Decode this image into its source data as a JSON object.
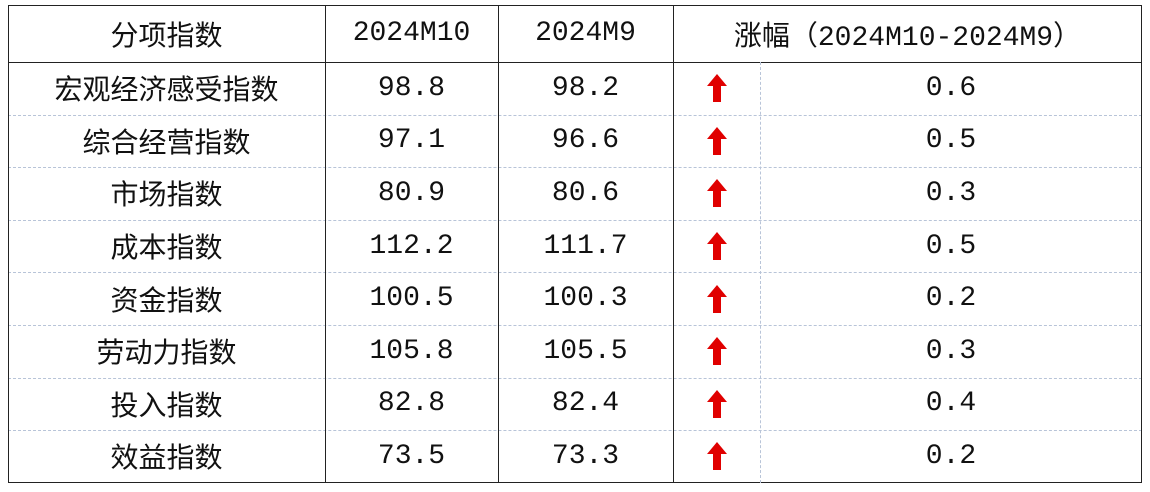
{
  "table": {
    "header": [
      "分项指数",
      "2024M10",
      "2024M9",
      "涨幅（2024M10-2024M9）"
    ],
    "rows": [
      [
        "宏观经济感受指数",
        98.8,
        98.2,
        0.6
      ],
      [
        "综合经营指数",
        97.1,
        96.6,
        0.5
      ],
      [
        "市场指数",
        80.9,
        80.6,
        0.3
      ],
      [
        "成本指数",
        112.2,
        111.7,
        0.5
      ],
      [
        "资金指数",
        100.5,
        100.3,
        0.2
      ],
      [
        "劳动力指数",
        105.8,
        105.5,
        0.3
      ],
      [
        "投入指数",
        82.8,
        82.4,
        0.4
      ],
      [
        "效益指数",
        73.5,
        73.3,
        0.2
      ]
    ]
  }
}
